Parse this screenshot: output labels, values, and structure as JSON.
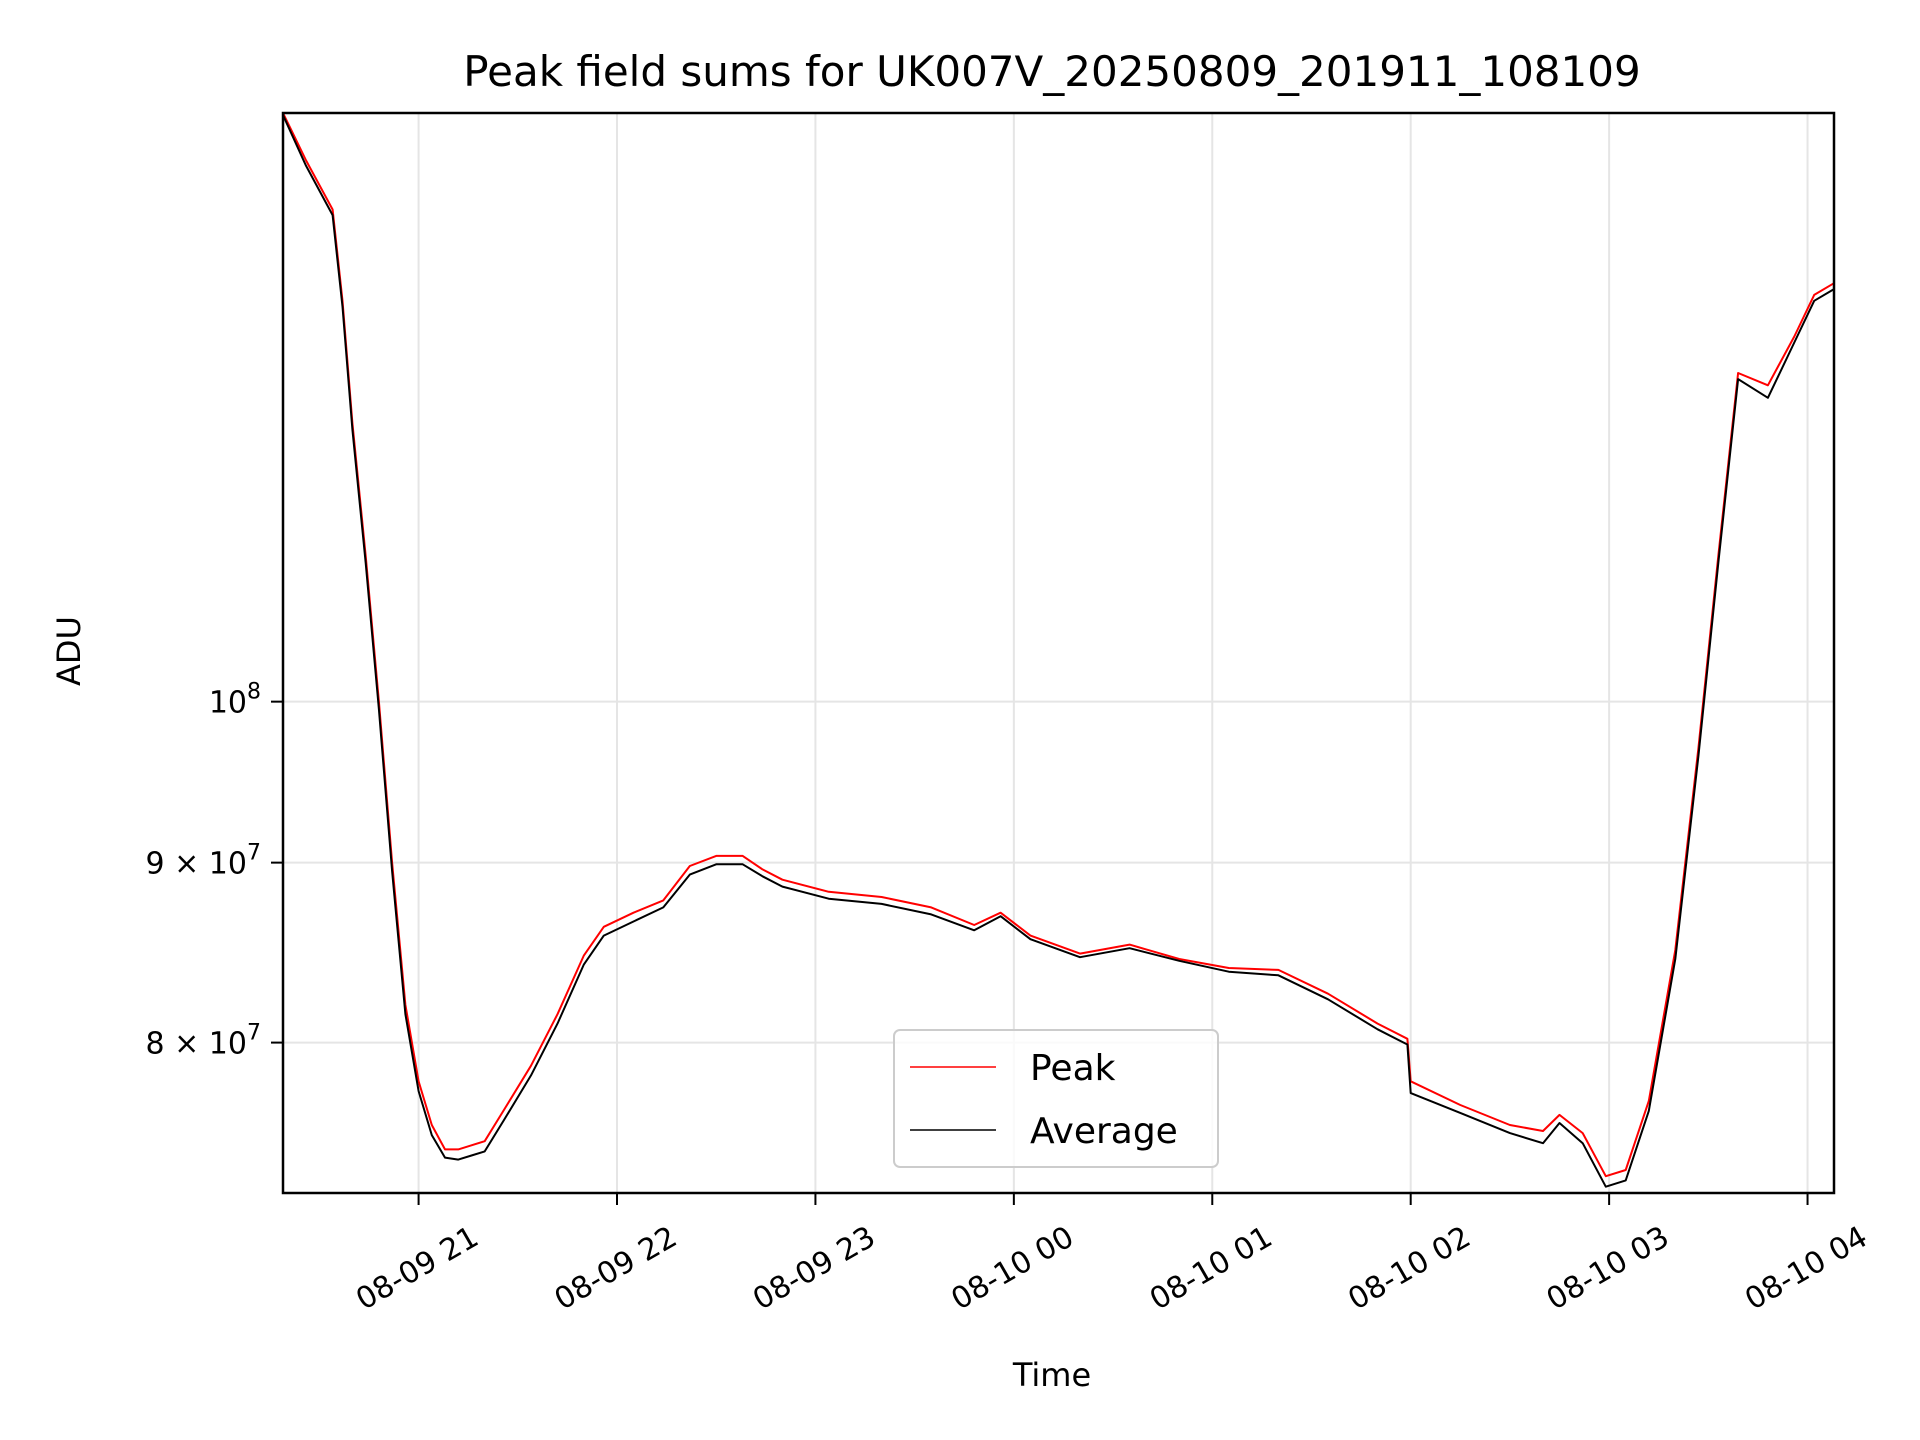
{
  "chart_data": {
    "type": "line",
    "title": "Peak field sums for UK007V_20250809_201911_108109",
    "xlabel": "Time",
    "ylabel": "ADU",
    "x_scale": "time",
    "y_scale": "log",
    "grid": true,
    "legend_position": "lower-center",
    "xlim": [
      "2025-08-09T20:19",
      "2025-08-10T04:08"
    ],
    "ylim": [
      72500000,
      147000000
    ],
    "x_ticks": [
      {
        "value": "2025-08-09T21:00",
        "label": "08-09 21"
      },
      {
        "value": "2025-08-09T22:00",
        "label": "08-09 22"
      },
      {
        "value": "2025-08-09T23:00",
        "label": "08-09 23"
      },
      {
        "value": "2025-08-10T00:00",
        "label": "08-10 00"
      },
      {
        "value": "2025-08-10T01:00",
        "label": "08-10 01"
      },
      {
        "value": "2025-08-10T02:00",
        "label": "08-10 02"
      },
      {
        "value": "2025-08-10T03:00",
        "label": "08-10 03"
      },
      {
        "value": "2025-08-10T04:00",
        "label": "08-10 04"
      }
    ],
    "y_ticks": [
      {
        "value": 80000000,
        "base": "8 × 10",
        "exp": "7"
      },
      {
        "value": 90000000,
        "base": "9 × 10",
        "exp": "7"
      },
      {
        "value": 100000000,
        "base": "10",
        "exp": "8"
      }
    ],
    "series": [
      {
        "name": "Peak",
        "color": "#ff0000",
        "points": [
          [
            "2025-08-09T20:19",
            147000000
          ],
          [
            "2025-08-09T20:26",
            142500000
          ],
          [
            "2025-08-09T20:34",
            138000000
          ],
          [
            "2025-08-09T20:37",
            130000000
          ],
          [
            "2025-08-09T20:40",
            120000000
          ],
          [
            "2025-08-09T20:44",
            110000000
          ],
          [
            "2025-08-09T20:48",
            100000000
          ],
          [
            "2025-08-09T20:52",
            90000000
          ],
          [
            "2025-08-09T20:56",
            82000000
          ],
          [
            "2025-08-09T21:00",
            78000000
          ],
          [
            "2025-08-09T21:04",
            75800000
          ],
          [
            "2025-08-09T21:08",
            74600000
          ],
          [
            "2025-08-09T21:12",
            74600000
          ],
          [
            "2025-08-09T21:16",
            74800000
          ],
          [
            "2025-08-09T21:20",
            75000000
          ],
          [
            "2025-08-09T21:26",
            76600000
          ],
          [
            "2025-08-09T21:34",
            78800000
          ],
          [
            "2025-08-09T21:42",
            81500000
          ],
          [
            "2025-08-09T21:50",
            84700000
          ],
          [
            "2025-08-09T21:56",
            86300000
          ],
          [
            "2025-08-09T22:05",
            87100000
          ],
          [
            "2025-08-09T22:14",
            87800000
          ],
          [
            "2025-08-09T22:22",
            89800000
          ],
          [
            "2025-08-09T22:30",
            90400000
          ],
          [
            "2025-08-09T22:38",
            90400000
          ],
          [
            "2025-08-09T22:44",
            89600000
          ],
          [
            "2025-08-09T22:50",
            89000000
          ],
          [
            "2025-08-09T23:04",
            88300000
          ],
          [
            "2025-08-09T23:20",
            88000000
          ],
          [
            "2025-08-09T23:35",
            87400000
          ],
          [
            "2025-08-09T23:48",
            86400000
          ],
          [
            "2025-08-09T23:56",
            87100000
          ],
          [
            "2025-08-10T00:05",
            85800000
          ],
          [
            "2025-08-10T00:20",
            84800000
          ],
          [
            "2025-08-10T00:35",
            85300000
          ],
          [
            "2025-08-10T00:50",
            84500000
          ],
          [
            "2025-08-10T01:05",
            84000000
          ],
          [
            "2025-08-10T01:20",
            83900000
          ],
          [
            "2025-08-10T01:35",
            82600000
          ],
          [
            "2025-08-10T01:50",
            81000000
          ],
          [
            "2025-08-10T01:59",
            80200000
          ],
          [
            "2025-08-10T02:00",
            78000000
          ],
          [
            "2025-08-10T02:15",
            76800000
          ],
          [
            "2025-08-10T02:30",
            75800000
          ],
          [
            "2025-08-10T02:40",
            75500000
          ],
          [
            "2025-08-10T02:45",
            76300000
          ],
          [
            "2025-08-10T02:52",
            75400000
          ],
          [
            "2025-08-10T02:59",
            73300000
          ],
          [
            "2025-08-10T03:05",
            73600000
          ],
          [
            "2025-08-10T03:12",
            77000000
          ],
          [
            "2025-08-10T03:20",
            85000000
          ],
          [
            "2025-08-10T03:27",
            97000000
          ],
          [
            "2025-08-10T03:33",
            110000000
          ],
          [
            "2025-08-10T03:39",
            124000000
          ],
          [
            "2025-08-10T03:48",
            123000000
          ],
          [
            "2025-08-10T03:56",
            127000000
          ],
          [
            "2025-08-10T04:02",
            130500000
          ],
          [
            "2025-08-10T04:08",
            131500000
          ]
        ]
      },
      {
        "name": "Average",
        "color": "#000000",
        "points": [
          [
            "2025-08-09T20:19",
            146800000
          ],
          [
            "2025-08-09T20:26",
            142000000
          ],
          [
            "2025-08-09T20:34",
            137500000
          ],
          [
            "2025-08-09T20:37",
            129500000
          ],
          [
            "2025-08-09T20:40",
            119500000
          ],
          [
            "2025-08-09T20:44",
            109500000
          ],
          [
            "2025-08-09T20:48",
            99500000
          ],
          [
            "2025-08-09T20:52",
            89500000
          ],
          [
            "2025-08-09T20:56",
            81500000
          ],
          [
            "2025-08-09T21:00",
            77500000
          ],
          [
            "2025-08-09T21:04",
            75300000
          ],
          [
            "2025-08-09T21:08",
            74200000
          ],
          [
            "2025-08-09T21:12",
            74100000
          ],
          [
            "2025-08-09T21:16",
            74300000
          ],
          [
            "2025-08-09T21:20",
            74500000
          ],
          [
            "2025-08-09T21:26",
            76100000
          ],
          [
            "2025-08-09T21:34",
            78300000
          ],
          [
            "2025-08-09T21:42",
            81000000
          ],
          [
            "2025-08-09T21:50",
            84200000
          ],
          [
            "2025-08-09T21:56",
            85800000
          ],
          [
            "2025-08-09T22:05",
            86600000
          ],
          [
            "2025-08-09T22:14",
            87400000
          ],
          [
            "2025-08-09T22:22",
            89300000
          ],
          [
            "2025-08-09T22:30",
            89900000
          ],
          [
            "2025-08-09T22:38",
            89900000
          ],
          [
            "2025-08-09T22:44",
            89200000
          ],
          [
            "2025-08-09T22:50",
            88600000
          ],
          [
            "2025-08-09T23:04",
            87900000
          ],
          [
            "2025-08-09T23:20",
            87600000
          ],
          [
            "2025-08-09T23:35",
            87000000
          ],
          [
            "2025-08-09T23:48",
            86100000
          ],
          [
            "2025-08-09T23:56",
            86900000
          ],
          [
            "2025-08-10T00:05",
            85600000
          ],
          [
            "2025-08-10T00:20",
            84600000
          ],
          [
            "2025-08-10T00:35",
            85100000
          ],
          [
            "2025-08-10T00:50",
            84400000
          ],
          [
            "2025-08-10T01:05",
            83800000
          ],
          [
            "2025-08-10T01:20",
            83600000
          ],
          [
            "2025-08-10T01:35",
            82300000
          ],
          [
            "2025-08-10T01:50",
            80700000
          ],
          [
            "2025-08-10T01:59",
            79900000
          ],
          [
            "2025-08-10T02:00",
            77400000
          ],
          [
            "2025-08-10T02:15",
            76400000
          ],
          [
            "2025-08-10T02:30",
            75400000
          ],
          [
            "2025-08-10T02:40",
            74900000
          ],
          [
            "2025-08-10T02:45",
            75900000
          ],
          [
            "2025-08-10T02:52",
            74900000
          ],
          [
            "2025-08-10T02:59",
            72800000
          ],
          [
            "2025-08-10T03:05",
            73100000
          ],
          [
            "2025-08-10T03:12",
            76500000
          ],
          [
            "2025-08-10T03:20",
            84500000
          ],
          [
            "2025-08-10T03:27",
            96500000
          ],
          [
            "2025-08-10T03:33",
            109500000
          ],
          [
            "2025-08-10T03:39",
            123500000
          ],
          [
            "2025-08-10T03:48",
            122000000
          ],
          [
            "2025-08-10T03:56",
            126500000
          ],
          [
            "2025-08-10T04:02",
            130000000
          ],
          [
            "2025-08-10T04:08",
            131000000
          ]
        ]
      }
    ]
  }
}
